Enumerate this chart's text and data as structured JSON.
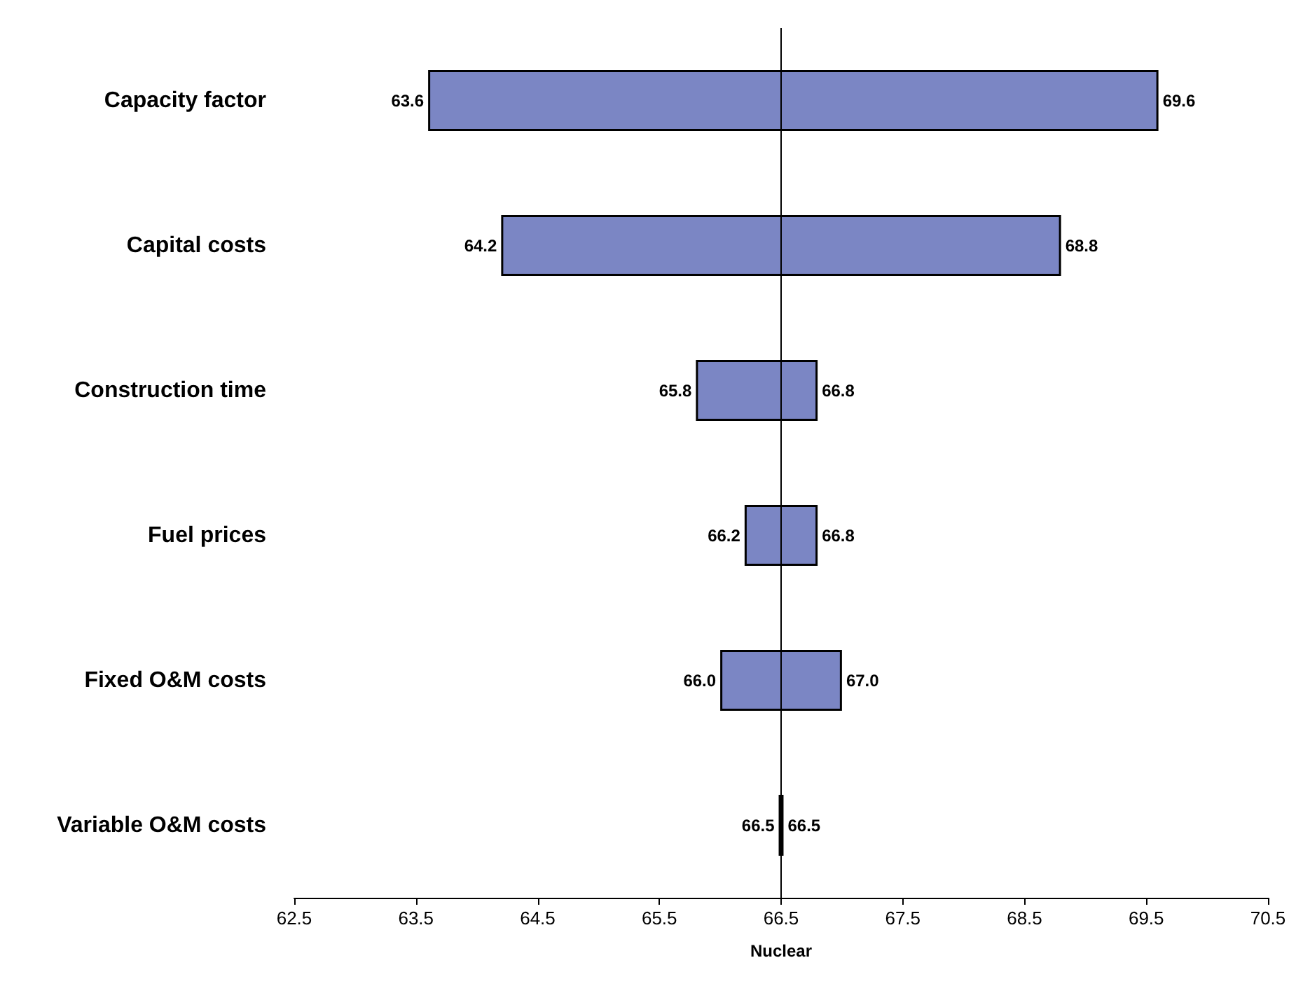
{
  "chart_data": {
    "type": "bar",
    "orientation": "horizontal",
    "xlabel": "Nuclear",
    "categories": [
      "Capacity factor",
      "Capital costs",
      "Construction time",
      "Fuel prices",
      "Fixed O&M costs",
      "Variable O&M costs"
    ],
    "base": [
      63.6,
      64.2,
      65.8,
      66.2,
      66.0,
      66.48
    ],
    "values": [
      6.0,
      4.6,
      1.0,
      0.6,
      1.0,
      0.04
    ],
    "color": "#7b86c4",
    "xlim": [
      62.5,
      70.5
    ],
    "xticks": [
      62.5,
      63.5,
      64.5,
      65.5,
      66.5,
      67.5,
      68.5,
      69.5,
      70.5
    ],
    "grid": false,
    "ref_lines": [
      {
        "axis": "x",
        "value": 66.5,
        "color": "#000000"
      }
    ],
    "annotations": [
      {
        "text": "63.6",
        "x": 63.6,
        "y": "Capacity factor"
      },
      {
        "text": "69.6",
        "x": 69.6,
        "y": "Capacity factor"
      },
      {
        "text": "64.2",
        "x": 64.2,
        "y": "Capital costs"
      },
      {
        "text": "68.8",
        "x": 68.8,
        "y": "Capital costs"
      },
      {
        "text": "65.8",
        "x": 65.8,
        "y": "Construction time"
      },
      {
        "text": "66.8",
        "x": 66.8,
        "y": "Construction time"
      },
      {
        "text": "66.2",
        "x": 66.2,
        "y": "Fuel prices"
      },
      {
        "text": "66.8",
        "x": 66.8,
        "y": "Fuel prices"
      },
      {
        "text": "66.0",
        "x": 66.0,
        "y": "Fixed O&M costs"
      },
      {
        "text": "67.0",
        "x": 67.0,
        "y": "Fixed O&M costs"
      },
      {
        "text": "66.5",
        "x": 66.48,
        "y": "Variable O&M costs"
      },
      {
        "text": "66.5",
        "x": 66.52,
        "y": "Variable O&M costs"
      }
    ]
  }
}
